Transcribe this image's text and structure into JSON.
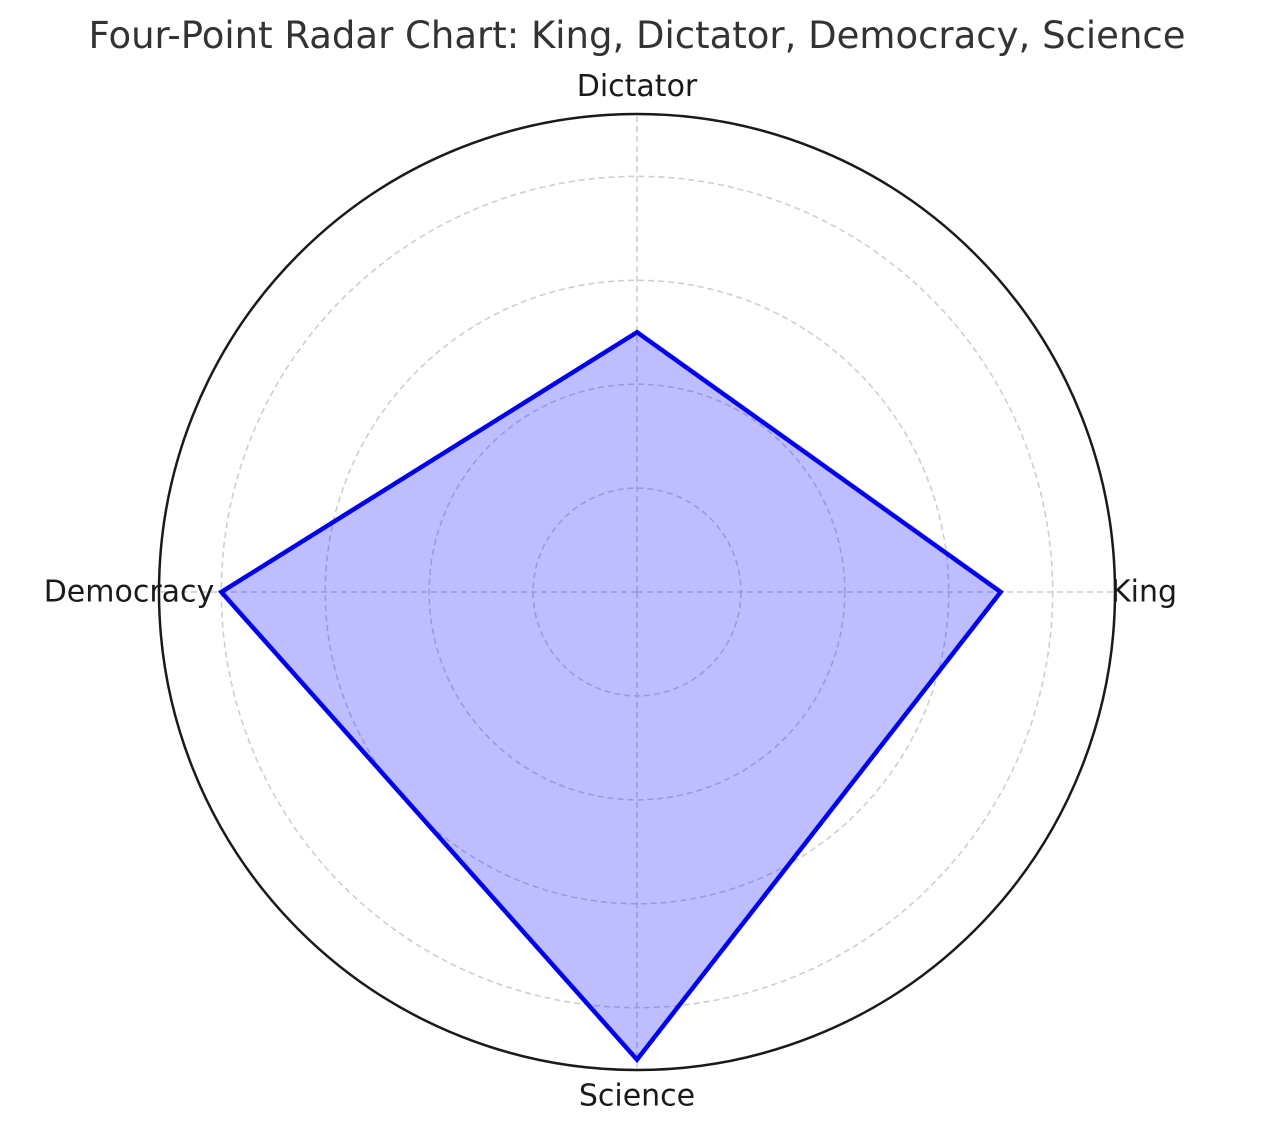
{
  "chart_data": {
    "type": "radar",
    "title": "Four-Point Radar Chart: King, Dictator, Democracy, Science",
    "categories": [
      "King",
      "Dictator",
      "Democracy",
      "Science"
    ],
    "series": [
      {
        "values": [
          3.5,
          2.5,
          4.0,
          4.5
        ]
      }
    ],
    "rlim": [
      0,
      4.6
    ],
    "rgrid": [
      1,
      2,
      3,
      4
    ],
    "grid": true,
    "grid_style": "dashed",
    "line_color": "#0000ee",
    "fill_color": "#0000ff",
    "fill_opacity": 0.26,
    "outer_circle_color": "#1a1a1a",
    "grid_color": "#cccccc"
  }
}
